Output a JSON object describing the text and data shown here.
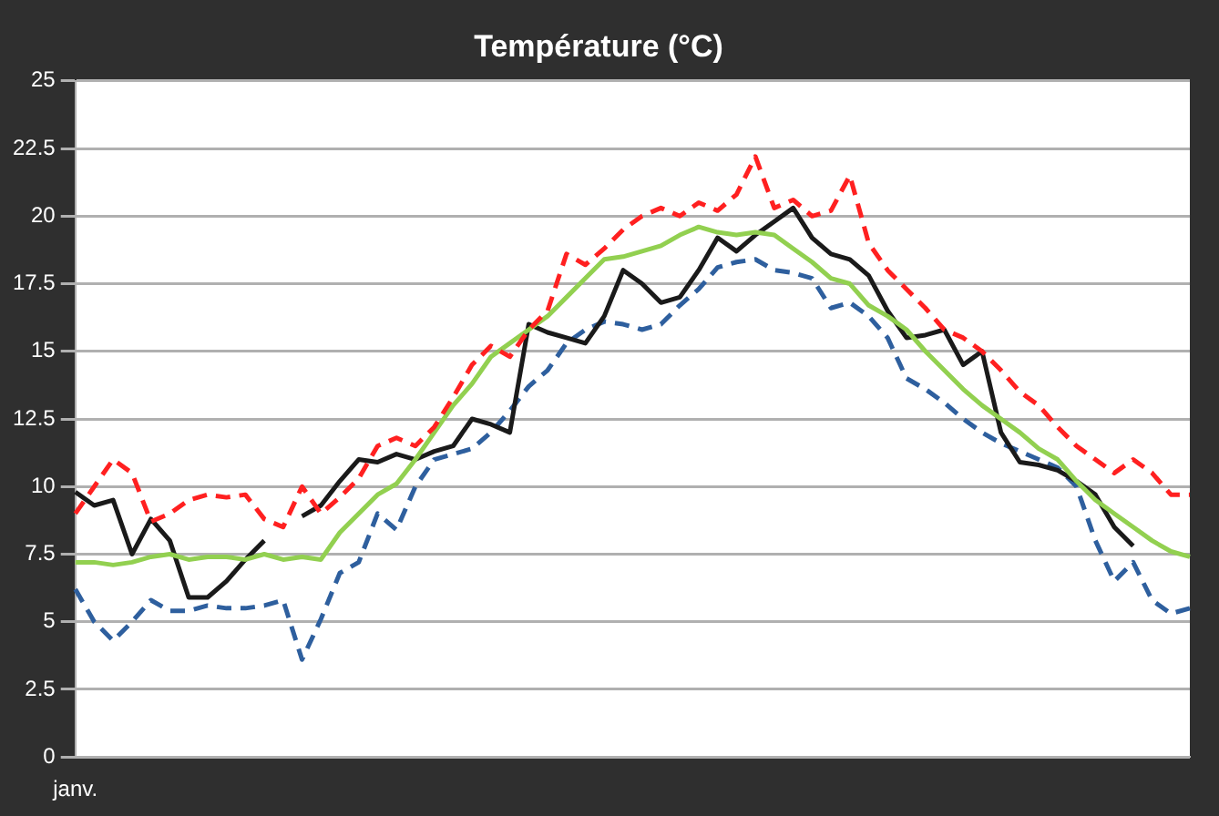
{
  "chart_data": {
    "type": "line",
    "title": "Température (°C)",
    "categories": [
      "janv.",
      null,
      null,
      null,
      null,
      null,
      null,
      null,
      null,
      null,
      null,
      null,
      null,
      null,
      null,
      null,
      null,
      null,
      null,
      null,
      null,
      null,
      null,
      null,
      null,
      null,
      null,
      null,
      null,
      null,
      null,
      null,
      null,
      null,
      null,
      null,
      null,
      null,
      null,
      null,
      null,
      null,
      null,
      null,
      null,
      null,
      null,
      null,
      null,
      null,
      null,
      null,
      null,
      null,
      null,
      null,
      null,
      null,
      null,
      null
    ],
    "ylim": [
      0,
      25
    ],
    "yticks": [
      0,
      2.5,
      5,
      7.5,
      10,
      12.5,
      15,
      17.5,
      20,
      22.5,
      25
    ],
    "grid": "y",
    "legend": false,
    "marker": "none",
    "series": [
      {
        "color": "#ff2020",
        "line_style": "dashed",
        "values": [
          9.0,
          10.0,
          11.0,
          10.5,
          8.7,
          9.0,
          9.5,
          9.7,
          9.6,
          9.7,
          8.8,
          8.5,
          10.0,
          9.0,
          9.6,
          10.3,
          11.5,
          11.8,
          11.5,
          12.2,
          13.3,
          14.5,
          15.2,
          14.8,
          15.8,
          16.5,
          18.6,
          18.2,
          18.8,
          19.5,
          20.0,
          20.3,
          20.0,
          20.5,
          20.2,
          20.8,
          22.2,
          20.3,
          20.6,
          20.0,
          20.2,
          21.5,
          19.0,
          18.0,
          17.3,
          16.6,
          15.8,
          15.5,
          15.0,
          14.3,
          13.5,
          13.0,
          12.2,
          11.5,
          11.0,
          10.5,
          11.0,
          10.5,
          9.7,
          9.7
        ]
      },
      {
        "color": "#92d050",
        "line_style": "solid",
        "values": [
          7.2,
          7.2,
          7.1,
          7.2,
          7.4,
          7.5,
          7.3,
          7.4,
          7.4,
          7.3,
          7.5,
          7.3,
          7.4,
          7.3,
          8.3,
          9.0,
          9.7,
          10.1,
          11.0,
          12.0,
          13.0,
          13.8,
          14.8,
          15.3,
          15.8,
          16.3,
          17.0,
          17.7,
          18.4,
          18.5,
          18.7,
          18.9,
          19.3,
          19.6,
          19.4,
          19.3,
          19.4,
          19.3,
          18.8,
          18.3,
          17.7,
          17.5,
          16.7,
          16.3,
          15.8,
          15.0,
          14.3,
          13.6,
          13.0,
          12.5,
          12.0,
          11.4,
          11.0,
          10.2,
          9.5,
          9.0,
          8.5,
          8.0,
          7.6,
          7.4
        ]
      },
      {
        "color": "#1a1a1a",
        "line_style": "solid",
        "values": [
          9.8,
          9.3,
          9.5,
          7.5,
          8.8,
          8.0,
          5.9,
          5.9,
          6.5,
          7.3,
          8.0,
          null,
          8.9,
          9.3,
          10.2,
          11.0,
          10.9,
          11.2,
          11.0,
          11.3,
          11.5,
          12.5,
          12.3,
          12.0,
          16.0,
          15.7,
          15.5,
          15.3,
          16.3,
          18.0,
          17.5,
          16.8,
          17.0,
          18.0,
          19.2,
          18.7,
          19.3,
          19.8,
          20.3,
          19.2,
          18.6,
          18.4,
          17.8,
          16.5,
          15.5,
          15.6,
          15.8,
          14.5,
          15.0,
          12.0,
          10.9,
          10.8,
          10.6,
          10.2,
          9.7,
          8.5,
          7.8,
          null,
          null,
          null
        ]
      },
      {
        "color": "#2e5f9e",
        "line_style": "dashed",
        "values": [
          6.2,
          5.0,
          4.3,
          5.0,
          5.8,
          5.4,
          5.4,
          5.6,
          5.5,
          5.5,
          5.6,
          5.8,
          3.6,
          5.1,
          6.8,
          7.2,
          9.0,
          8.4,
          10.0,
          11.0,
          11.2,
          11.4,
          12.0,
          12.8,
          13.7,
          14.3,
          15.3,
          15.8,
          16.1,
          16.0,
          15.8,
          16.0,
          16.7,
          17.3,
          18.1,
          18.3,
          18.4,
          18.0,
          17.9,
          17.7,
          16.6,
          16.8,
          16.3,
          15.5,
          14.0,
          13.6,
          13.1,
          12.5,
          12.0,
          11.6,
          11.3,
          11.0,
          10.7,
          10.0,
          8.0,
          6.5,
          7.2,
          5.8,
          5.3,
          5.5
        ]
      }
    ]
  }
}
